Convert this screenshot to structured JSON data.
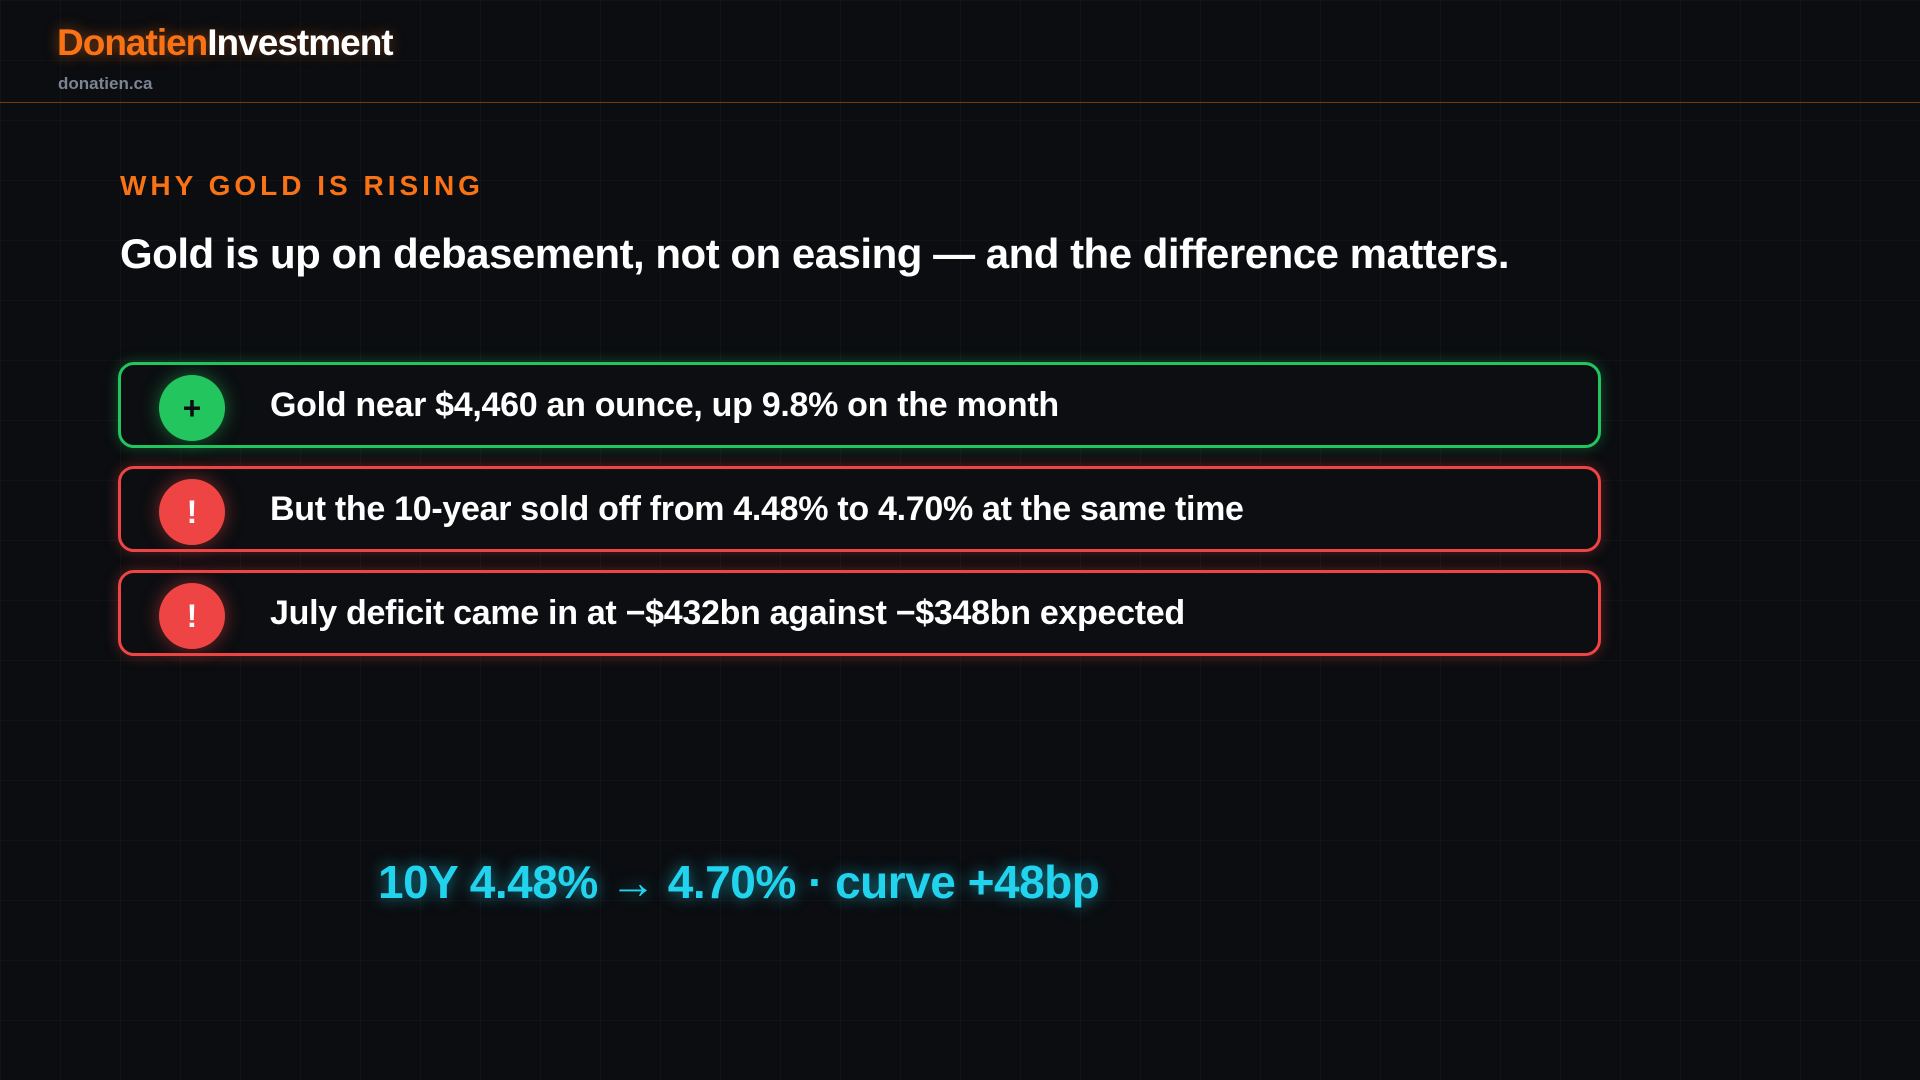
{
  "header": {
    "brand_primary": "Donatien",
    "brand_secondary": "Investment",
    "domain": "donatien.ca"
  },
  "slide": {
    "eyebrow": "WHY GOLD IS RISING",
    "headline": "Gold is up on debasement, not on easing — and the difference matters.",
    "items": [
      {
        "icon": "+",
        "icon_name": "plus-icon",
        "status": "positive",
        "text": "Gold near $4,460 an ounce, up 9.8% on the month"
      },
      {
        "icon": "!",
        "icon_name": "alert-icon",
        "status": "negative",
        "text": "But the 10-year sold off from 4.48% to 4.70% at the same time"
      },
      {
        "icon": "!",
        "icon_name": "alert-icon",
        "status": "negative",
        "text": "July deficit came in at −$432bn against −$348bn expected"
      }
    ],
    "metric": "10Y 4.48% → 4.70% · curve +48bp"
  },
  "colors": {
    "background": "#0b0d10",
    "accent": "#f97316",
    "positive": "#22c55e",
    "negative": "#ef4444",
    "highlight": "#22d3ee"
  }
}
